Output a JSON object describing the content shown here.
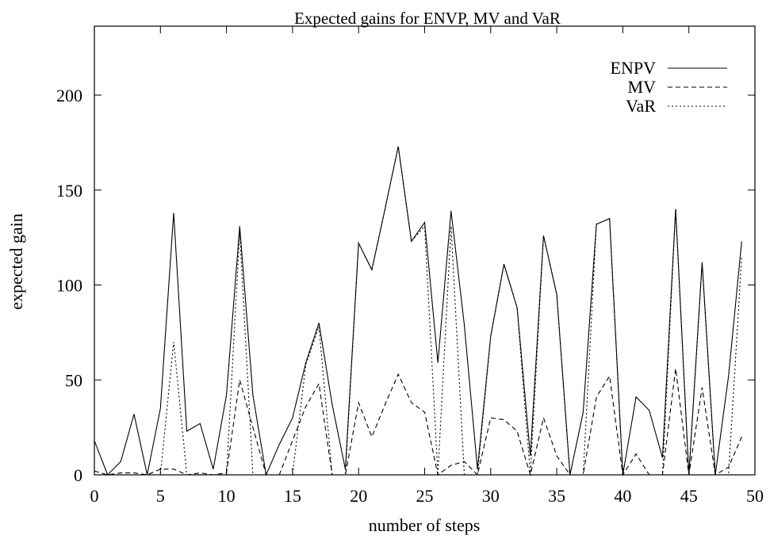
{
  "chart_data": {
    "type": "line",
    "title": "Expected gains for ENVP, MV and VaR",
    "xlabel": "number of steps",
    "ylabel": "expected gain",
    "xlim": [
      0,
      50
    ],
    "ylim": [
      0,
      200
    ],
    "xticks": [
      "0",
      "5",
      "10",
      "15",
      "20",
      "25",
      "30",
      "35",
      "40",
      "45",
      "50"
    ],
    "yticks": [
      "0",
      "50",
      "100",
      "150",
      "200"
    ],
    "legend_position": "top-right",
    "grid": false,
    "x": [
      0,
      1,
      2,
      3,
      4,
      5,
      6,
      7,
      8,
      9,
      10,
      11,
      12,
      13,
      14,
      15,
      16,
      17,
      18,
      19,
      20,
      21,
      22,
      23,
      24,
      25,
      26,
      27,
      28,
      29,
      30,
      31,
      32,
      33,
      34,
      35,
      36,
      37,
      38,
      39,
      40,
      41,
      42,
      43,
      44,
      45,
      46,
      47,
      48,
      49
    ],
    "series": [
      {
        "name": "ENPV",
        "style": "solid",
        "values": [
          18,
          0,
          7,
          32,
          0,
          35,
          138,
          23,
          27,
          3,
          42,
          131,
          42,
          0,
          16,
          30,
          59,
          80,
          37,
          3,
          122,
          108,
          140,
          173,
          123,
          133,
          59,
          139,
          79,
          3,
          73,
          111,
          88,
          10,
          126,
          95,
          0,
          33,
          132,
          135,
          0,
          41,
          34,
          9,
          140,
          0,
          112,
          0,
          52,
          123
        ]
      },
      {
        "name": "MV",
        "style": "dashed",
        "values": [
          2,
          0,
          1,
          1,
          0,
          3,
          3,
          0,
          1,
          0,
          1,
          50,
          25,
          0,
          0,
          18,
          36,
          48,
          0,
          0,
          38,
          20,
          37,
          53,
          38,
          33,
          0,
          5,
          7,
          0,
          30,
          29,
          23,
          0,
          30,
          10,
          0,
          0,
          41,
          52,
          0,
          11,
          0,
          0,
          56,
          0,
          46,
          0,
          4,
          20
        ]
      },
      {
        "name": "VaR",
        "style": "dotted",
        "values": [
          0,
          0,
          0,
          0,
          0,
          0,
          70,
          0,
          0,
          0,
          0,
          128,
          0,
          0,
          0,
          0,
          58,
          78,
          0,
          0,
          122,
          108,
          140,
          173,
          123,
          131,
          0,
          131,
          0,
          0,
          73,
          111,
          88,
          0,
          126,
          95,
          0,
          0,
          132,
          135,
          0,
          0,
          0,
          0,
          140,
          0,
          111,
          0,
          0,
          115
        ]
      }
    ]
  }
}
